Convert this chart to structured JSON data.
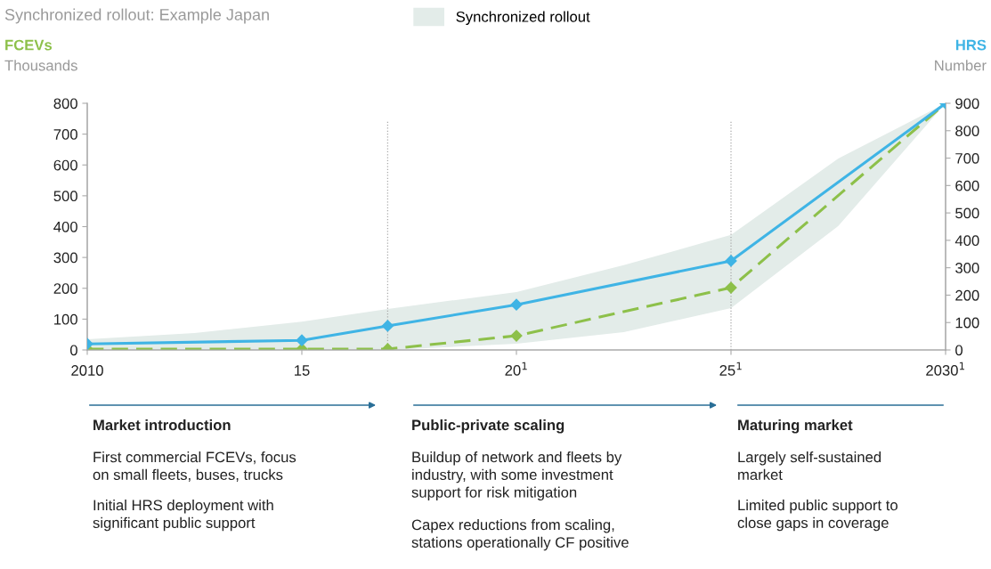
{
  "chart_data": {
    "type": "line",
    "title": "Synchronized rollout: Example Japan",
    "ylabel": "FCEVs\nThousands",
    "y2label": "HRS\nNumber",
    "xlim": [
      2010,
      2030
    ],
    "xticks": [
      {
        "value": 2010,
        "label": "2010"
      },
      {
        "value": 2015,
        "label": "15"
      },
      {
        "value": 2020,
        "label": "20$^{1}$"
      },
      {
        "value": 2025,
        "label": "25$^{1}$"
      },
      {
        "value": 2030,
        "label": "2030$^{1}$"
      }
    ],
    "ylim": [
      0,
      800
    ],
    "yticks": [
      0,
      100,
      200,
      300,
      400,
      500,
      600,
      700,
      800
    ],
    "y2lim": [
      0,
      900
    ],
    "y2ticks": [
      0,
      100,
      200,
      300,
      400,
      500,
      600,
      700,
      800,
      900
    ],
    "series": [
      {
        "name": "Synchronized rollout",
        "type": "area",
        "color": "#e3ece9",
        "x": [
          2010,
          2012.5,
          2015,
          2017,
          2020,
          2022.5,
          2025,
          2027.5,
          2030
        ],
        "values": [
          null,
          null,
          null,
          null,
          null,
          null,
          null,
          null,
          null
        ],
        "upper": [
          35,
          55,
          92,
          133,
          188,
          275,
          373,
          621,
          800
        ],
        "lower": [
          0,
          0,
          0,
          0,
          20,
          58,
          136,
          402,
          800
        ]
      },
      {
        "color": "#8dc04a",
        "line_style": "dashed",
        "marker": "diamond",
        "x": [
          2010,
          2015,
          2017,
          2020,
          2025,
          2030
        ],
        "values": [
          3,
          3,
          3,
          46,
          202,
          800
        ]
      },
      {
        "axis": "y2",
        "color": "#3fb4e5",
        "line_style": "solid",
        "marker": "diamond",
        "x": [
          2010,
          2015,
          2017,
          2020,
          2025,
          2030
        ],
        "values": [
          22,
          35,
          88,
          165,
          325,
          900
        ]
      }
    ],
    "legend": "top",
    "grid": false,
    "ref_lines": [
      {
        "axis": "x",
        "value": 2017,
        "color": "#aaaaaa",
        "line_style": "dotted"
      },
      {
        "axis": "x",
        "value": 2025,
        "color": "#aaaaaa",
        "line_style": "dotted"
      }
    ],
    "annotations": [
      "Market introduction",
      "First commercial FCEVs, focus\non small fleets, buses, trucks",
      "Initial HRS deployment with\nsignificant public support",
      "Public-private scaling",
      "Buildup of network and fleets by\nindustry, with some investment\nsupport for risk mitigation",
      "Capex reductions from scaling,\nstations operationally CF positive",
      "Maturing market",
      "Largely self-sustained\nmarket",
      "Limited public support to\nclose gaps in coverage"
    ]
  }
}
